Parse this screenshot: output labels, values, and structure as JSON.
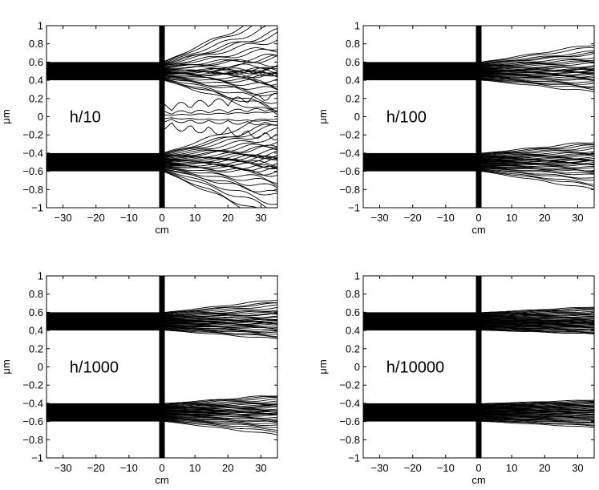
{
  "chart_data": [
    {
      "type": "line",
      "annotation": "h/10",
      "xlabel": "cm",
      "ylabel": "μm",
      "xlim": [
        -35,
        35
      ],
      "ylim": [
        -1,
        1
      ],
      "xticks": [
        -30,
        -20,
        -10,
        0,
        10,
        20,
        30
      ],
      "xtick_labels": [
        "−30",
        "−20",
        "−10",
        "0",
        "10",
        "20",
        "30"
      ],
      "yticks": [
        -1,
        -0.8,
        -0.6,
        -0.4,
        -0.2,
        0,
        0.2,
        0.4,
        0.6,
        0.8,
        1
      ],
      "ytick_labels": [
        "−1",
        "−0.8",
        "−0.6",
        "−0.4",
        "−0.2",
        "0",
        "0.2",
        "0.4",
        "0.6",
        "0.8",
        "1"
      ],
      "grid": false,
      "slit_centers": [
        0.5,
        -0.5
      ],
      "slit_halfwidth": 0.1,
      "screen_x": 0,
      "screen_halfwidth": 0.8,
      "spread": 1.0,
      "centre_lines": true
    },
    {
      "type": "line",
      "annotation": "h/100",
      "xlabel": "cm",
      "ylabel": "μm",
      "xlim": [
        -35,
        35
      ],
      "ylim": [
        -1,
        1
      ],
      "xticks": [
        -30,
        -20,
        -10,
        0,
        10,
        20,
        30
      ],
      "xtick_labels": [
        "−30",
        "−20",
        "−10",
        "0",
        "10",
        "20",
        "30"
      ],
      "yticks": [
        -1,
        -0.8,
        -0.6,
        -0.4,
        -0.2,
        0,
        0.2,
        0.4,
        0.6,
        0.8,
        1
      ],
      "ytick_labels": [
        "−1",
        "−0.8",
        "−0.6",
        "−0.4",
        "−0.2",
        "0",
        "0.2",
        "0.4",
        "0.6",
        "0.8",
        "1"
      ],
      "grid": false,
      "slit_centers": [
        0.5,
        -0.5
      ],
      "slit_halfwidth": 0.1,
      "screen_x": 0,
      "screen_halfwidth": 0.8,
      "spread": 0.32,
      "centre_lines": false
    },
    {
      "type": "line",
      "annotation": "h/1000",
      "xlabel": "cm",
      "ylabel": "μm",
      "xlim": [
        -35,
        35
      ],
      "ylim": [
        -1,
        1
      ],
      "xticks": [
        -30,
        -20,
        -10,
        0,
        10,
        20,
        30
      ],
      "xtick_labels": [
        "−30",
        "−20",
        "−10",
        "0",
        "10",
        "20",
        "30"
      ],
      "yticks": [
        -1,
        -0.8,
        -0.6,
        -0.4,
        -0.2,
        0,
        0.2,
        0.4,
        0.6,
        0.8,
        1
      ],
      "ytick_labels": [
        "−1",
        "−0.8",
        "−0.6",
        "−0.4",
        "−0.2",
        "0",
        "0.2",
        "0.4",
        "0.6",
        "0.8",
        "1"
      ],
      "grid": false,
      "slit_centers": [
        0.5,
        -0.5
      ],
      "slit_halfwidth": 0.1,
      "screen_x": 0,
      "screen_halfwidth": 0.8,
      "spread": 0.24,
      "centre_lines": false
    },
    {
      "type": "line",
      "annotation": "h/10000",
      "xlabel": "cm",
      "ylabel": "μm",
      "xlim": [
        -35,
        35
      ],
      "ylim": [
        -1,
        1
      ],
      "xticks": [
        -30,
        -20,
        -10,
        0,
        10,
        20,
        30
      ],
      "xtick_labels": [
        "−30",
        "−20",
        "−10",
        "0",
        "10",
        "20",
        "30"
      ],
      "yticks": [
        -1,
        -0.8,
        -0.6,
        -0.4,
        -0.2,
        0,
        0.2,
        0.4,
        0.6,
        0.8,
        1
      ],
      "ytick_labels": [
        "−1",
        "−0.8",
        "−0.6",
        "−0.4",
        "−0.2",
        "0",
        "0.2",
        "0.4",
        "0.6",
        "0.8",
        "1"
      ],
      "grid": false,
      "slit_centers": [
        0.5,
        -0.5
      ],
      "slit_halfwidth": 0.1,
      "screen_x": 0,
      "screen_halfwidth": 0.8,
      "spread": 0.11,
      "centre_lines": false
    }
  ],
  "colors": {
    "ink": "#000000",
    "background": "#ffffff"
  }
}
